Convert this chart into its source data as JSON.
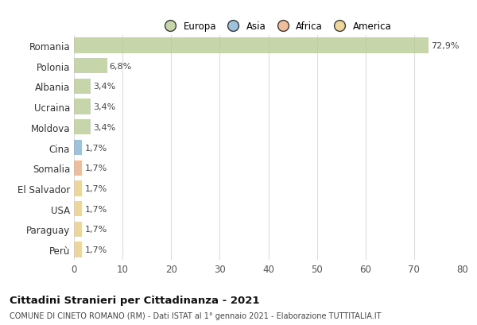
{
  "countries": [
    "Romania",
    "Polonia",
    "Albania",
    "Ucraina",
    "Moldova",
    "Cina",
    "Somalia",
    "El Salvador",
    "USA",
    "Paraguay",
    "Perù"
  ],
  "values": [
    72.9,
    6.8,
    3.4,
    3.4,
    3.4,
    1.7,
    1.7,
    1.7,
    1.7,
    1.7,
    1.7
  ],
  "labels": [
    "72,9%",
    "6,8%",
    "3,4%",
    "3,4%",
    "3,4%",
    "1,7%",
    "1,7%",
    "1,7%",
    "1,7%",
    "1,7%",
    "1,7%"
  ],
  "colors": [
    "#b5c98e",
    "#b5c98e",
    "#b5c98e",
    "#b5c98e",
    "#b5c98e",
    "#7eaed0",
    "#e8a87c",
    "#e8c97e",
    "#e8c97e",
    "#e8c97e",
    "#e8c97e"
  ],
  "legend_labels": [
    "Europa",
    "Asia",
    "Africa",
    "America"
  ],
  "legend_colors": [
    "#b5c98e",
    "#7eaed0",
    "#e8a87c",
    "#e8c97e"
  ],
  "title": "Cittadini Stranieri per Cittadinanza - 2021",
  "subtitle": "COMUNE DI CINETO ROMANO (RM) - Dati ISTAT al 1° gennaio 2021 - Elaborazione TUTTITALIA.IT",
  "xlim": [
    0,
    80
  ],
  "xticks": [
    0,
    10,
    20,
    30,
    40,
    50,
    60,
    70,
    80
  ],
  "bg_color": "#ffffff",
  "grid_color": "#dddddd",
  "bar_alpha": 0.75,
  "bar_height": 0.75
}
